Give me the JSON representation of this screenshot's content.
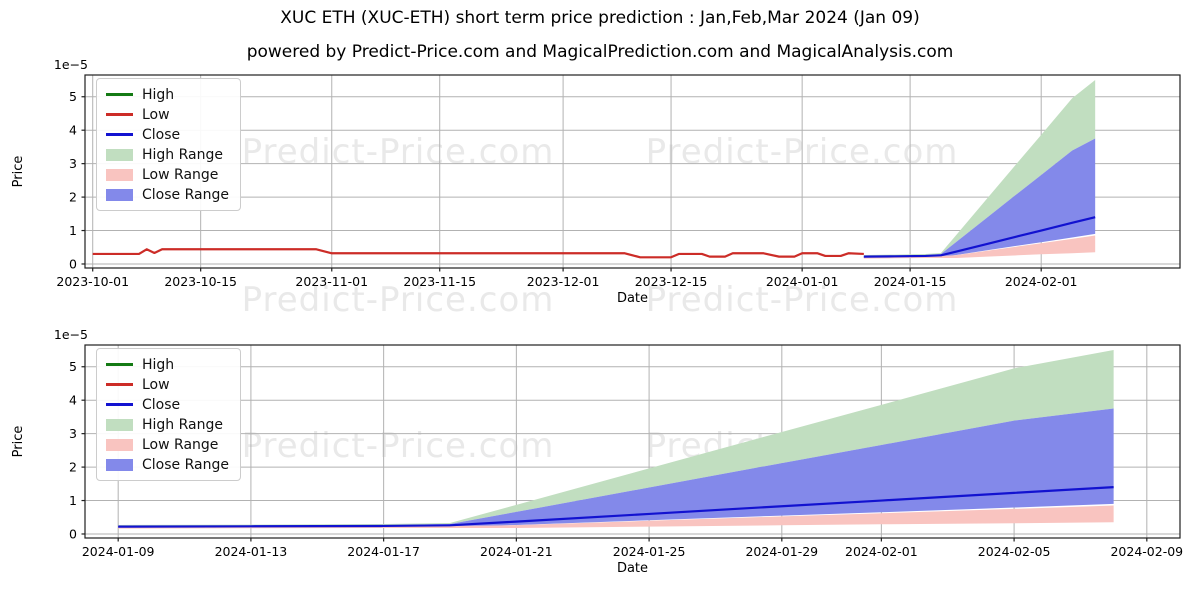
{
  "figure": {
    "title": "XUC ETH (XUC-ETH) short term price prediction : Jan,Feb,Mar 2024 (Jan 09)",
    "subtitle": "powered by Predict-Price.com and MagicalPrediction.com and MagicalAnalysis.com",
    "watermark": "Predict-Price.com",
    "colors": {
      "high": "#147a14",
      "low": "#cc2c27",
      "close": "#1212d0",
      "high_range": "#c1dec0",
      "low_range": "#f9c4c0",
      "close_range": "#8389ea",
      "grid": "#b2b2b2",
      "spine": "#1f1f1f",
      "watermark": "#e9e9e9"
    }
  },
  "legend": [
    "High",
    "Low",
    "Close",
    "High Range",
    "Low Range",
    "Close Range"
  ],
  "chart_data": [
    {
      "type": "line",
      "title": "",
      "xlabel": "Date",
      "ylabel": "Price",
      "offset_text": "1e−5",
      "ylim": [
        -0.12,
        5.65
      ],
      "yticks": [
        0,
        1,
        2,
        3,
        4,
        5
      ],
      "y_unit": "1e-5",
      "grid": true,
      "legend_position": "upper left",
      "xdomain": [
        "2023-09-30",
        "2024-02-19"
      ],
      "xticks": [
        "2023-10-01",
        "2023-10-15",
        "2023-11-01",
        "2023-11-15",
        "2023-12-01",
        "2023-12-15",
        "2024-01-01",
        "2024-01-15",
        "2024-02-01"
      ],
      "series": [
        {
          "name": "Low",
          "color_key": "low",
          "x": [
            "2023-10-01",
            "2023-10-07",
            "2023-10-08",
            "2023-10-09",
            "2023-10-10",
            "2023-10-30",
            "2023-11-01",
            "2023-12-09",
            "2023-12-11",
            "2023-12-15",
            "2023-12-16",
            "2023-12-19",
            "2023-12-20",
            "2023-12-22",
            "2023-12-23",
            "2023-12-27",
            "2023-12-29",
            "2023-12-31",
            "2024-01-01",
            "2024-01-03",
            "2024-01-04",
            "2024-01-06",
            "2024-01-07",
            "2024-01-09"
          ],
          "y": [
            0.3,
            0.3,
            0.44,
            0.33,
            0.44,
            0.44,
            0.32,
            0.32,
            0.2,
            0.2,
            0.3,
            0.3,
            0.22,
            0.22,
            0.32,
            0.32,
            0.22,
            0.22,
            0.32,
            0.32,
            0.24,
            0.24,
            0.32,
            0.3
          ]
        },
        {
          "name": "Close",
          "color_key": "close",
          "x": [
            "2024-01-09",
            "2024-01-13",
            "2024-01-17",
            "2024-01-19",
            "2024-01-21",
            "2024-01-25",
            "2024-01-29",
            "2024-02-01",
            "2024-02-05",
            "2024-02-08"
          ],
          "y": [
            0.22,
            0.23,
            0.24,
            0.26,
            0.37,
            0.6,
            0.83,
            1.0,
            1.23,
            1.4
          ]
        }
      ],
      "bands": [
        {
          "name": "High Range",
          "color_key": "high_range",
          "x": [
            "2024-01-09",
            "2024-01-13",
            "2024-01-17",
            "2024-01-19",
            "2024-01-21",
            "2024-01-25",
            "2024-01-29",
            "2024-02-01",
            "2024-02-05",
            "2024-02-08"
          ],
          "upper": [
            0.27,
            0.28,
            0.3,
            0.33,
            0.87,
            1.96,
            3.05,
            3.86,
            4.95,
            5.5
          ],
          "lower": [
            0.24,
            0.25,
            0.26,
            0.3,
            0.66,
            1.39,
            2.12,
            2.66,
            3.39,
            3.75
          ]
        },
        {
          "name": "Close Range",
          "color_key": "close_range",
          "x": [
            "2024-01-09",
            "2024-01-13",
            "2024-01-17",
            "2024-01-19",
            "2024-01-21",
            "2024-01-25",
            "2024-01-29",
            "2024-02-01",
            "2024-02-05",
            "2024-02-08"
          ],
          "upper": [
            0.24,
            0.25,
            0.26,
            0.3,
            0.66,
            1.39,
            2.12,
            2.66,
            3.39,
            3.75
          ],
          "lower": [
            0.18,
            0.19,
            0.2,
            0.2,
            0.27,
            0.41,
            0.55,
            0.65,
            0.79,
            0.9
          ]
        },
        {
          "name": "Low Range",
          "color_key": "low_range",
          "x": [
            "2024-01-09",
            "2024-01-13",
            "2024-01-17",
            "2024-01-19",
            "2024-01-21",
            "2024-01-25",
            "2024-01-29",
            "2024-02-01",
            "2024-02-05",
            "2024-02-08"
          ],
          "upper": [
            0.22,
            0.23,
            0.24,
            0.24,
            0.265,
            0.395,
            0.525,
            0.62,
            0.75,
            0.85
          ],
          "lower": [
            0.16,
            0.17,
            0.18,
            0.18,
            0.18,
            0.22,
            0.26,
            0.29,
            0.32,
            0.35
          ]
        }
      ]
    },
    {
      "type": "line",
      "title": "",
      "xlabel": "Date",
      "ylabel": "Price",
      "offset_text": "1e−5",
      "ylim": [
        -0.12,
        5.65
      ],
      "yticks": [
        0,
        1,
        2,
        3,
        4,
        5
      ],
      "y_unit": "1e-5",
      "grid": true,
      "legend_position": "upper left",
      "xdomain": [
        "2024-01-08",
        "2024-02-10"
      ],
      "xticks": [
        "2024-01-09",
        "2024-01-13",
        "2024-01-17",
        "2024-01-21",
        "2024-01-25",
        "2024-01-29",
        "2024-02-01",
        "2024-02-05",
        "2024-02-09"
      ],
      "series": [
        {
          "name": "Close",
          "color_key": "close",
          "x": [
            "2024-01-09",
            "2024-01-13",
            "2024-01-17",
            "2024-01-19",
            "2024-01-21",
            "2024-01-25",
            "2024-01-29",
            "2024-02-01",
            "2024-02-05",
            "2024-02-08"
          ],
          "y": [
            0.22,
            0.23,
            0.24,
            0.26,
            0.37,
            0.6,
            0.83,
            1.0,
            1.23,
            1.4
          ]
        }
      ],
      "bands": [
        {
          "name": "High Range",
          "color_key": "high_range",
          "x": [
            "2024-01-09",
            "2024-01-13",
            "2024-01-17",
            "2024-01-19",
            "2024-01-21",
            "2024-01-25",
            "2024-01-29",
            "2024-02-01",
            "2024-02-05",
            "2024-02-08"
          ],
          "upper": [
            0.27,
            0.28,
            0.3,
            0.33,
            0.87,
            1.96,
            3.05,
            3.86,
            4.95,
            5.5
          ],
          "lower": [
            0.24,
            0.25,
            0.26,
            0.3,
            0.66,
            1.39,
            2.12,
            2.66,
            3.39,
            3.75
          ]
        },
        {
          "name": "Close Range",
          "color_key": "close_range",
          "x": [
            "2024-01-09",
            "2024-01-13",
            "2024-01-17",
            "2024-01-19",
            "2024-01-21",
            "2024-01-25",
            "2024-01-29",
            "2024-02-01",
            "2024-02-05",
            "2024-02-08"
          ],
          "upper": [
            0.24,
            0.25,
            0.26,
            0.3,
            0.66,
            1.39,
            2.12,
            2.66,
            3.39,
            3.75
          ],
          "lower": [
            0.18,
            0.19,
            0.2,
            0.2,
            0.27,
            0.41,
            0.55,
            0.65,
            0.79,
            0.9
          ]
        },
        {
          "name": "Low Range",
          "color_key": "low_range",
          "x": [
            "2024-01-09",
            "2024-01-13",
            "2024-01-17",
            "2024-01-19",
            "2024-01-21",
            "2024-01-25",
            "2024-01-29",
            "2024-02-01",
            "2024-02-05",
            "2024-02-08"
          ],
          "upper": [
            0.22,
            0.23,
            0.24,
            0.24,
            0.265,
            0.395,
            0.525,
            0.62,
            0.75,
            0.85
          ],
          "lower": [
            0.16,
            0.17,
            0.18,
            0.18,
            0.18,
            0.22,
            0.26,
            0.29,
            0.32,
            0.35
          ]
        }
      ]
    }
  ]
}
